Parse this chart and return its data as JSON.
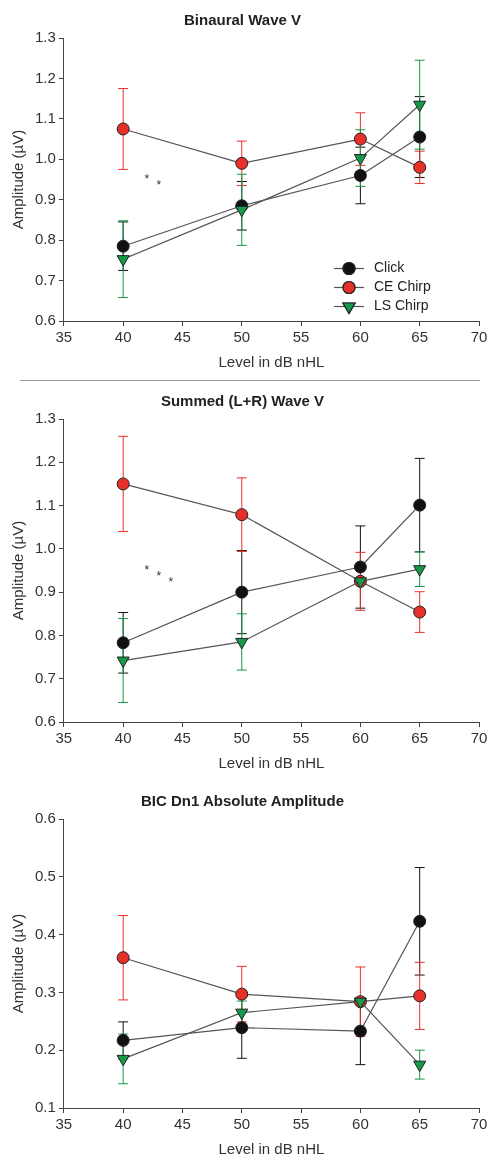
{
  "chart_data": [
    {
      "type": "line",
      "title": "Binaural Wave V",
      "xlabel": "Level in dB nHL",
      "ylabel": "Amplitude (µV)",
      "x": [
        40,
        50,
        60,
        65
      ],
      "xlim": [
        35,
        70
      ],
      "xticks": [
        35,
        40,
        45,
        50,
        55,
        60,
        65,
        70
      ],
      "ylim": [
        0.6,
        1.3
      ],
      "yticks": [
        0.6,
        0.7,
        0.8,
        0.9,
        {
          "value": 1,
          "label": "1.0"
        },
        1.1,
        1.2,
        1.3
      ],
      "grid": false,
      "legend": "bottom right",
      "series": [
        {
          "name": "Click",
          "color": "#111111",
          "marker": "circle",
          "values": [
            0.785,
            0.885,
            0.96,
            1.055
          ],
          "errors": [
            0.06,
            0.06,
            0.07,
            0.1
          ]
        },
        {
          "name": "CE Chirp",
          "color": "#e8302a",
          "marker": "circle",
          "values": [
            1.075,
            0.99,
            1.05,
            0.98
          ],
          "errors": [
            0.1,
            0.055,
            0.065,
            0.04
          ]
        },
        {
          "name": "LS Chirp",
          "color": "#17984a",
          "marker": "triangle",
          "values": [
            0.753,
            0.875,
            1.003,
            1.135
          ],
          "errors": [
            0.095,
            0.088,
            0.07,
            0.11
          ]
        }
      ],
      "annotations": [
        "*",
        "*"
      ]
    },
    {
      "type": "line",
      "title": "Summed (L+R) Wave V",
      "xlabel": "Level in dB nHL",
      "ylabel": "Amplitude (µV)",
      "x": [
        40,
        50,
        60,
        65
      ],
      "xlim": [
        35,
        70
      ],
      "xticks": [
        35,
        40,
        45,
        50,
        55,
        60,
        65,
        70
      ],
      "ylim": [
        0.6,
        1.3
      ],
      "yticks": [
        0.6,
        0.7,
        0.8,
        0.9,
        {
          "value": 1,
          "label": "1.0"
        },
        1.1,
        1.2,
        1.3
      ],
      "grid": false,
      "series": [
        {
          "color": "#111111",
          "marker": "circle",
          "values": [
            0.783,
            0.9,
            0.958,
            1.101
          ],
          "errors": [
            0.07,
            0.096,
            0.095,
            0.108
          ]
        },
        {
          "color": "#e8302a",
          "marker": "circle",
          "values": [
            1.15,
            1.079,
            0.925,
            0.854
          ],
          "errors": [
            0.11,
            0.085,
            0.067,
            0.047
          ]
        },
        {
          "color": "#17984a",
          "marker": "triangle",
          "values": [
            0.742,
            0.785,
            0.925,
            0.953
          ],
          "errors": [
            0.097,
            0.065,
            null,
            0.04
          ]
        }
      ],
      "annotations": [
        "*",
        "*",
        "*"
      ]
    },
    {
      "type": "line",
      "title": "BIC Dn1 Absolute Amplitude",
      "xlabel": "Level in dB nHL",
      "ylabel": "Amplitude (µV)",
      "x": [
        40,
        50,
        60,
        65
      ],
      "xlim": [
        35,
        70
      ],
      "xticks": [
        35,
        40,
        45,
        50,
        55,
        60,
        65,
        70
      ],
      "ylim": [
        0.1,
        0.6
      ],
      "yticks": [
        0.1,
        0.2,
        0.3,
        0.4,
        0.5,
        0.6
      ],
      "grid": false,
      "series": [
        {
          "color": "#111111",
          "marker": "circle",
          "values": [
            0.217,
            0.239,
            0.233,
            0.423
          ],
          "errors": [
            0.032,
            0.053,
            0.058,
            0.093
          ]
        },
        {
          "color": "#e8302a",
          "marker": "circle",
          "values": [
            0.36,
            0.297,
            0.284,
            0.294
          ],
          "errors": [
            0.073,
            0.048,
            0.06,
            0.058
          ]
        },
        {
          "color": "#17984a",
          "marker": "triangle",
          "values": [
            0.185,
            0.265,
            0.284,
            0.175
          ],
          "errors": [
            0.043,
            0.02,
            null,
            0.025
          ]
        }
      ]
    }
  ]
}
